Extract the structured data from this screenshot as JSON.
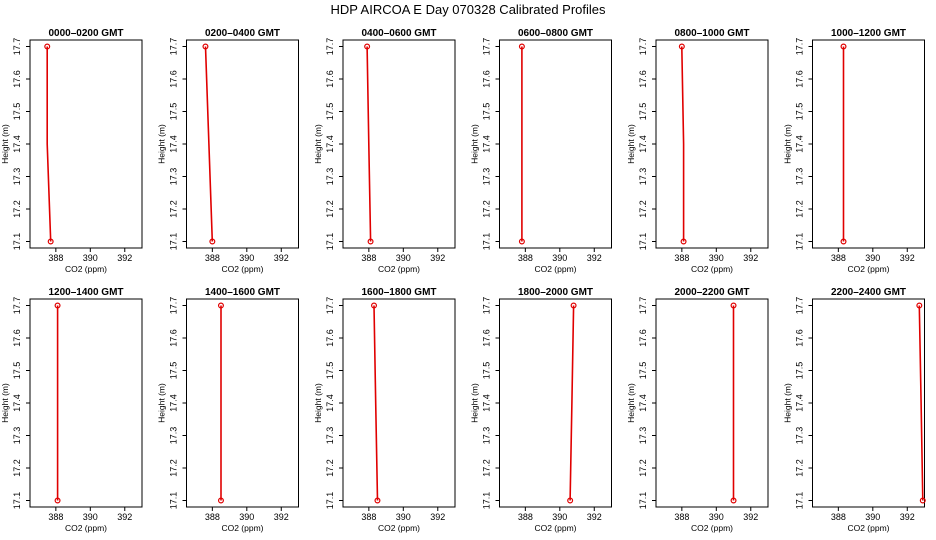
{
  "chart_data": {
    "type": "line",
    "title": "HDP AIRCOA E  Day 070328  Calibrated Profiles",
    "xlabel": "CO2 (ppm)",
    "ylabel": "Height (m)",
    "xlim": [
      386.5,
      393.0
    ],
    "ylim": [
      17.08,
      17.72
    ],
    "xticks": [
      388,
      390,
      392
    ],
    "yticks": [
      17.1,
      17.2,
      17.3,
      17.4,
      17.5,
      17.6,
      17.7
    ],
    "series_color": "#e00000",
    "panels": [
      {
        "name": "0000–0200 GMT",
        "x": [
          387.7,
          387.5,
          387.5
        ],
        "y": [
          17.1,
          17.4,
          17.7
        ]
      },
      {
        "name": "0200–0400 GMT",
        "x": [
          388.0,
          387.8,
          387.6
        ],
        "y": [
          17.1,
          17.4,
          17.7
        ]
      },
      {
        "name": "0400–0600 GMT",
        "x": [
          388.1,
          388.0,
          387.9
        ],
        "y": [
          17.1,
          17.4,
          17.7
        ]
      },
      {
        "name": "0600–0800 GMT",
        "x": [
          387.8,
          387.8,
          387.8
        ],
        "y": [
          17.1,
          17.4,
          17.7
        ]
      },
      {
        "name": "0800–1000 GMT",
        "x": [
          388.1,
          388.1,
          388.0
        ],
        "y": [
          17.1,
          17.4,
          17.7
        ]
      },
      {
        "name": "1000–1200 GMT",
        "x": [
          388.3,
          388.3,
          388.3
        ],
        "y": [
          17.1,
          17.4,
          17.7
        ]
      },
      {
        "name": "1200–1400 GMT",
        "x": [
          388.1,
          388.1,
          388.1
        ],
        "y": [
          17.1,
          17.4,
          17.7
        ]
      },
      {
        "name": "1400–1600 GMT",
        "x": [
          388.5,
          388.5,
          388.5
        ],
        "y": [
          17.1,
          17.4,
          17.7
        ]
      },
      {
        "name": "1600–1800 GMT",
        "x": [
          388.5,
          388.4,
          388.3
        ],
        "y": [
          17.1,
          17.4,
          17.7
        ]
      },
      {
        "name": "1800–2000 GMT",
        "x": [
          390.6,
          390.7,
          390.8
        ],
        "y": [
          17.1,
          17.4,
          17.7
        ]
      },
      {
        "name": "2000–2200 GMT",
        "x": [
          391.0,
          391.0,
          391.0
        ],
        "y": [
          17.1,
          17.4,
          17.7
        ]
      },
      {
        "name": "2200–2400 GMT",
        "x": [
          392.9,
          392.8,
          392.7
        ],
        "y": [
          17.1,
          17.4,
          17.7
        ]
      }
    ]
  }
}
